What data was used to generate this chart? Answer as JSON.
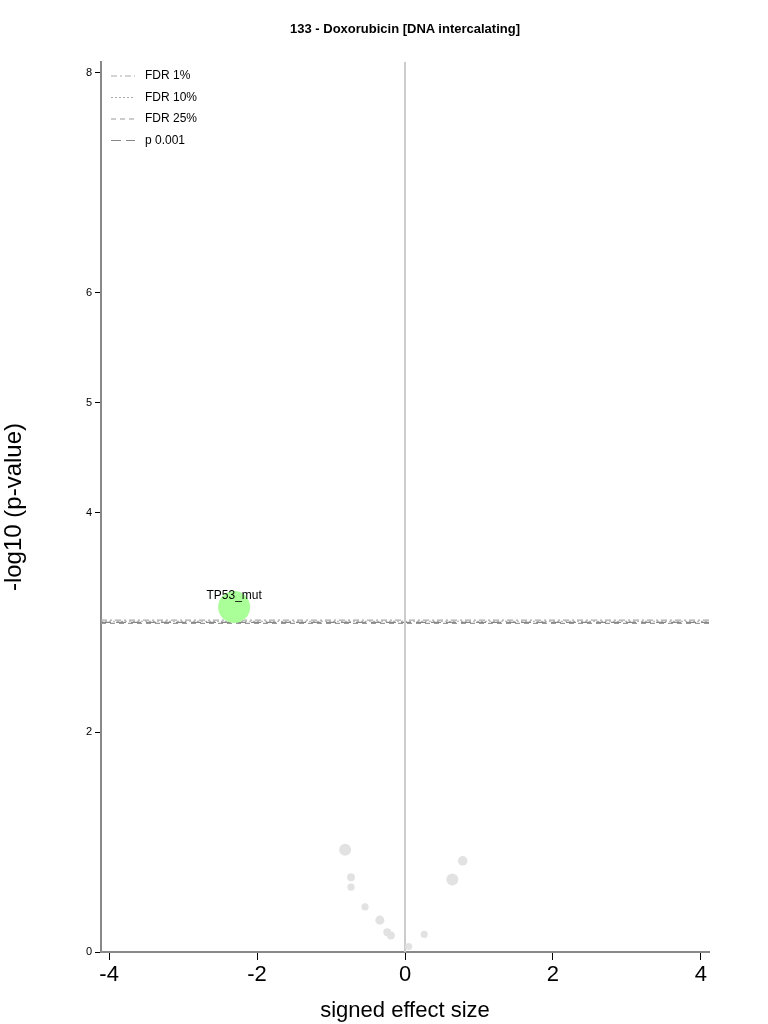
{
  "chart_data": {
    "type": "bubble",
    "title": "133 - Doxorubicin [DNA intercalating]",
    "xlabel": "signed effect size",
    "ylabel": "-log10 (p-value)",
    "x": [
      -2.31,
      -0.81,
      -0.73,
      -0.73,
      -0.54,
      -0.34,
      -0.24,
      -0.19,
      0.05,
      0.26,
      0.64,
      0.78
    ],
    "values": [
      3.14,
      0.93,
      0.68,
      0.59,
      0.41,
      0.29,
      0.18,
      0.15,
      0.05,
      0.16,
      0.66,
      0.83
    ],
    "sizes": [
      1,
      0.14,
      0.06,
      0.05,
      0.05,
      0.08,
      0.06,
      0.06,
      0.05,
      0.05,
      0.14,
      0.09
    ],
    "colors": [
      "#aaff99",
      "#e2e2e2",
      "#e2e2e2",
      "#e2e2e2",
      "#e2e2e2",
      "#e2e2e2",
      "#e2e2e2",
      "#e2e2e2",
      "#e2e2e2",
      "#e2e2e2",
      "#e2e2e2",
      "#e2e2e2"
    ],
    "xlim": [
      -4.11,
      4.11
    ],
    "xticks": [
      -4,
      -2,
      0,
      2,
      4
    ],
    "ylim": [
      0,
      8.1
    ],
    "yticks": [
      0,
      2,
      4,
      5,
      6,
      8
    ],
    "ref_lines": [
      {
        "axis": "y",
        "value": 3.02,
        "label": "FDR 1%",
        "color": "#aaaaaa",
        "line_style": "dashdot"
      },
      {
        "axis": "y",
        "value": 3.01,
        "label": "FDR 10%",
        "color": "#aaaaaa",
        "line_style": "dotted"
      },
      {
        "axis": "y",
        "value": 2.99,
        "label": "FDR 25%",
        "color": "#999999",
        "line_style": "dashed"
      },
      {
        "axis": "y",
        "value": 3,
        "label": "p 0.001",
        "color": "#888888",
        "line_style": "longdash"
      },
      {
        "axis": "x",
        "value": 0,
        "color": "#cccccc",
        "line_style": "solid"
      }
    ],
    "annotations": [
      {
        "text": "TP53_mut",
        "x": -2.31,
        "y": 3.14
      }
    ],
    "legend": "top left",
    "grid": false
  }
}
